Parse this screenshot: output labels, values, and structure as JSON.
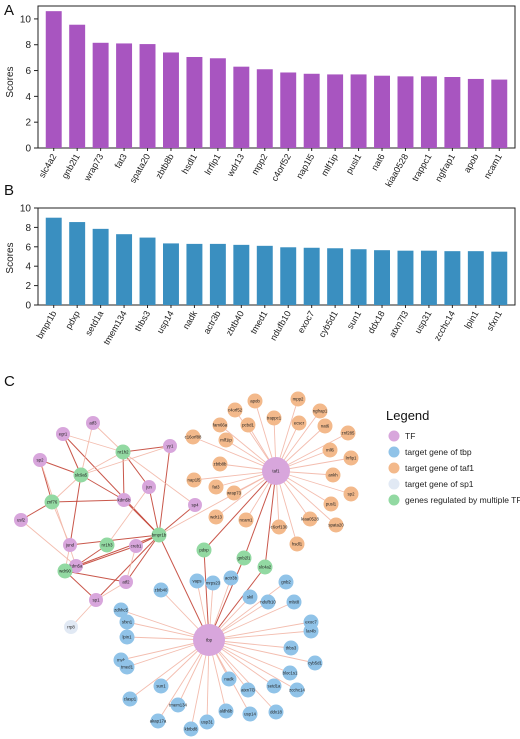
{
  "panel_labels": {
    "a": "A",
    "b": "B",
    "c": "C"
  },
  "colors": {
    "bar_a": "#a855c0",
    "bar_b": "#3a8fc0",
    "tf": "#d8a6dc",
    "tbp": "#90c3e8",
    "taf1": "#f3b98b",
    "sp1": "#e1e9f4",
    "multi": "#92d9a2",
    "edge_strong": "#c0392b",
    "edge_light": "#f2b6a6"
  },
  "chart_data": [
    {
      "type": "bar",
      "ylabel": "Scores",
      "ylim": [
        0,
        11
      ],
      "yticks": [
        0,
        2,
        4,
        6,
        8,
        10
      ],
      "categories": [
        "slc4a2",
        "gnb2l1",
        "wrap73",
        "fat3",
        "spata20",
        "zbtb8b",
        "hsdl1",
        "lrrfip1",
        "wdr13",
        "mpp2",
        "c4orf52",
        "nap1l5",
        "mlf1ip",
        "pusl1",
        "nat6",
        "kiaa0528",
        "trappc1",
        "ngfrap1",
        "apob",
        "ncam1"
      ],
      "values": [
        10.6,
        9.55,
        8.15,
        8.1,
        8.05,
        7.4,
        7.05,
        6.95,
        6.3,
        6.1,
        5.85,
        5.75,
        5.7,
        5.7,
        5.6,
        5.55,
        5.55,
        5.5,
        5.35,
        5.3
      ]
    },
    {
      "type": "bar",
      "ylabel": "Scores",
      "ylim": [
        0,
        10
      ],
      "yticks": [
        0,
        2,
        4,
        6,
        8,
        10
      ],
      "categories": [
        "bmpr1b",
        "pdxp",
        "setd1a",
        "tmem134",
        "thbs3",
        "usp14",
        "nadk",
        "actr3b",
        "zbtb40",
        "tmed1",
        "ndufb10",
        "exoc7",
        "cyb5d1",
        "sun1",
        "ddx18",
        "atxn7l3",
        "usp31",
        "zcchc14",
        "lpin1",
        "sfxn1"
      ],
      "values": [
        9.0,
        8.55,
        7.85,
        7.3,
        6.95,
        6.35,
        6.3,
        6.3,
        6.2,
        6.1,
        5.95,
        5.9,
        5.85,
        5.75,
        5.65,
        5.6,
        5.6,
        5.55,
        5.55,
        5.5
      ]
    }
  ],
  "network": {
    "hubs": [
      {
        "id": "taf1",
        "label": "taf1",
        "group": "tf"
      },
      {
        "id": "tbp",
        "label": "tbp",
        "group": "tf"
      }
    ],
    "tf_nodes": [
      "egr1",
      "atf3",
      "sp2",
      "yy1",
      "jun",
      "usf2",
      "kdm5b",
      "jund",
      "kdm5a",
      "sp4",
      "creb1",
      "atf2",
      "sp1"
    ],
    "multi_nodes": [
      "nr1h2",
      "slc9a5",
      "znf76",
      "nr1h3",
      "bmpr1b",
      "wdr90",
      "pdxp",
      "gnb2l1",
      "slc4a2"
    ],
    "sp1_targets": [
      "rrp8"
    ],
    "taf1_targets": [
      "apob",
      "mpp2",
      "ngfrap1",
      "c4orf52",
      "trappc1",
      "nat6",
      "fam66a",
      "pcbd1",
      "ecscr",
      "mlf1ip",
      "znf285",
      "c16orf88",
      "mll6",
      "lrrfip1",
      "zbtb8b",
      "ankh",
      "nap1l5",
      "sp2",
      "fat3",
      "wrap73",
      "pusl1",
      "wdr13",
      "ncam1",
      "kiaa0528",
      "c6orf130",
      "spata20",
      "hsdl1"
    ],
    "tbp_targets": [
      "zbtb40",
      "vaps",
      "mrps23",
      "actr3b",
      "gnb2",
      "zdhhc5",
      "skil",
      "ndufb10",
      "mlst8",
      "sfxn1",
      "lpin1",
      "exoc7",
      "lar4b",
      "mvk",
      "thbs3",
      "tmed1",
      "bloc1s1",
      "cyb5d1",
      "sun1",
      "nadk",
      "setd1a",
      "atxn7l3",
      "zcchc14",
      "ddx18",
      "tmem134",
      "aldh6b",
      "usp14",
      "akap17a",
      "usp31",
      "kbtbd8",
      "clasp1"
    ]
  },
  "legend": {
    "title": "Legend",
    "items": [
      {
        "label": "TF",
        "color_key": "tf"
      },
      {
        "label": "target gene of tbp",
        "color_key": "tbp"
      },
      {
        "label": "target gene of taf1",
        "color_key": "taf1"
      },
      {
        "label": "target gene of sp1",
        "color_key": "sp1"
      },
      {
        "label": "genes regulated by multiple TFs",
        "color_key": "multi"
      }
    ]
  }
}
